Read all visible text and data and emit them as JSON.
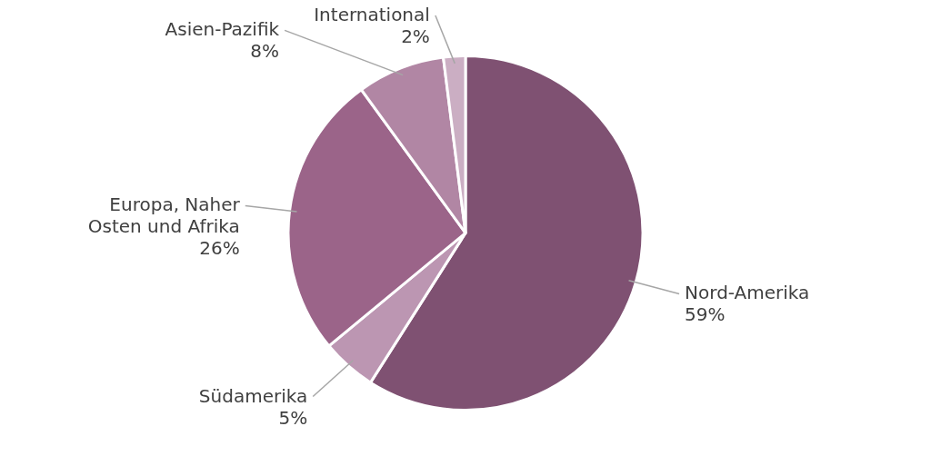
{
  "chart_data": {
    "type": "pie",
    "categories": [
      "Nord-Amerika",
      "Südamerika",
      "Europa, Naher Osten und Afrika",
      "Asien-Pazifik",
      "International"
    ],
    "values": [
      59,
      5,
      26,
      8,
      2
    ],
    "value_labels": [
      "59%",
      "5%",
      "26%",
      "8%",
      "2%"
    ],
    "colors": [
      "#7f5172",
      "#bc96b2",
      "#9b6489",
      "#b186a4",
      "#cbaec3"
    ]
  }
}
